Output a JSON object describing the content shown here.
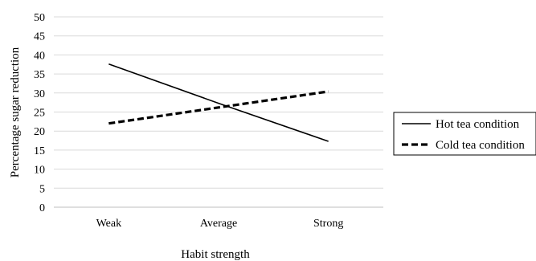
{
  "chart_data": {
    "type": "line",
    "categories": [
      "Weak",
      "Average",
      "Strong"
    ],
    "series": [
      {
        "name": "Hot tea condition",
        "values": [
          37.6,
          27.3,
          17.3
        ],
        "style": "solid",
        "color": "#000000"
      },
      {
        "name": "Cold tea condition",
        "values": [
          22.0,
          26.2,
          30.4
        ],
        "style": "dashed",
        "color": "#000000"
      }
    ],
    "xlabel": "Habit strength",
    "ylabel": "Percentage sugar reduction",
    "ylim": [
      0,
      50
    ],
    "yticks": [
      "0",
      "5",
      "10",
      "15",
      "20",
      "25",
      "30",
      "35",
      "40",
      "45",
      "50"
    ],
    "grid": true,
    "legend_position": "right"
  }
}
